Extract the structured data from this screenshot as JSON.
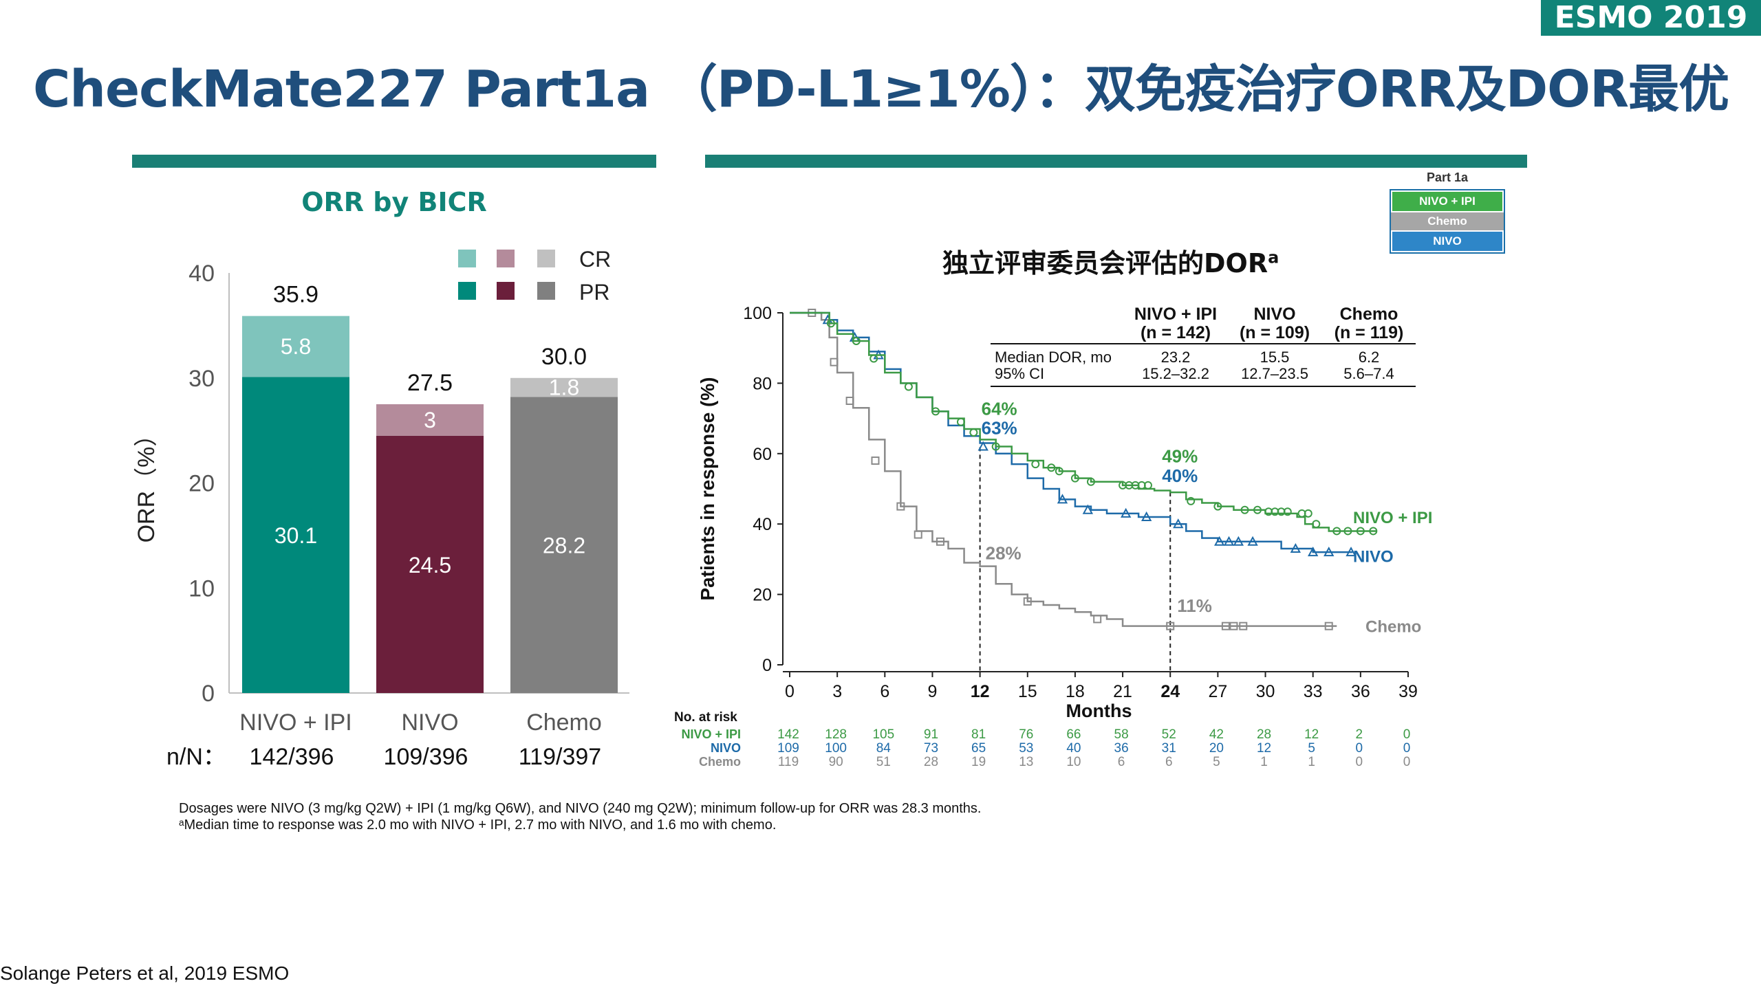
{
  "badge": "ESMO 2019",
  "title": "CheckMate227 Part1a （PD-L1≥1%）：双免疫治疗ORR及DOR最优",
  "colors": {
    "nivo_ipi": "#00897b",
    "nivo_ipi_cr": "#7fc4bc",
    "nivo": "#6b1f3b",
    "nivo_cr": "#b48b9b",
    "chemo": "#808080",
    "chemo_cr": "#c0c0c0",
    "km_nivo_ipi": "#3c9a45",
    "km_nivo": "#1d6aa8",
    "km_chemo": "#8a8a8a",
    "title": "#1f4e7c",
    "teal": "#118478"
  },
  "chart_data": [
    {
      "type": "bar",
      "title": "ORR by BICR",
      "ylabel": "ORR（%）",
      "ylim": [
        0,
        40
      ],
      "yticks": [
        "0",
        "10",
        "20",
        "30",
        "40"
      ],
      "categories": [
        "NIVO + IPI",
        "NIVO",
        "Chemo"
      ],
      "stacked": true,
      "series": [
        {
          "name": "PR",
          "values": [
            30.1,
            24.5,
            28.2
          ],
          "labels": [
            "30.1",
            "24.5",
            "28.2"
          ]
        },
        {
          "name": "CR",
          "values": [
            5.8,
            3,
            1.8
          ],
          "labels": [
            "5.8",
            "3",
            "1.8"
          ]
        }
      ],
      "totals": [
        "35.9",
        "27.5",
        "30.0"
      ],
      "nn_label": "n/N：",
      "nn": [
        "142/396",
        "109/396",
        "119/397"
      ],
      "legend": {
        "cr": "CR",
        "pr": "PR",
        "placement": "top-right"
      }
    },
    {
      "type": "line",
      "title": "独立评审委员会评估的DOR",
      "title_sup": "a",
      "xlabel": "Months",
      "ylabel": "Patients in response (%)",
      "xlim": [
        0,
        39
      ],
      "ylim": [
        0,
        100
      ],
      "xticks": [
        0,
        3,
        6,
        9,
        12,
        15,
        18,
        21,
        24,
        27,
        30,
        33,
        36,
        39
      ],
      "yticks": [
        0,
        20,
        40,
        60,
        80,
        100
      ],
      "reference_x": [
        12,
        24
      ],
      "legend_box": {
        "title": "Part 1a",
        "items": [
          "NIVO + IPI",
          "Chemo",
          "NIVO"
        ]
      },
      "table": {
        "headers": [
          [
            "NIVO + IPI",
            "(n = 142)"
          ],
          [
            "NIVO",
            "(n = 109)"
          ],
          [
            "Chemo",
            "(n = 119)"
          ]
        ],
        "rows": [
          {
            "label": "Median DOR, mo",
            "values": [
              "23.2",
              "15.5",
              "6.2"
            ]
          },
          {
            "label": "95% CI",
            "values": [
              "15.2–32.2",
              "12.7–23.5",
              "5.6–7.4"
            ]
          }
        ]
      },
      "annotations": [
        {
          "text": "64%",
          "series": "NIVO + IPI",
          "x": 12,
          "y": 64
        },
        {
          "text": "63%",
          "series": "NIVO",
          "x": 12,
          "y": 63
        },
        {
          "text": "49%",
          "series": "NIVO + IPI",
          "x": 24,
          "y": 49
        },
        {
          "text": "40%",
          "series": "NIVO",
          "x": 24,
          "y": 40
        },
        {
          "text": "28%",
          "series": "Chemo",
          "x": 12,
          "y": 28
        },
        {
          "text": "11%",
          "series": "Chemo",
          "x": 24,
          "y": 11
        }
      ],
      "series": [
        {
          "name": "NIVO + IPI",
          "marker": "circle",
          "points": [
            [
              0,
              100
            ],
            [
              2,
              100
            ],
            [
              2.5,
              97
            ],
            [
              3,
              94
            ],
            [
              4,
              92
            ],
            [
              5,
              88
            ],
            [
              6,
              83
            ],
            [
              7,
              80
            ],
            [
              8,
              76
            ],
            [
              9,
              72
            ],
            [
              10,
              70
            ],
            [
              11,
              67
            ],
            [
              12,
              64
            ],
            [
              13,
              62
            ],
            [
              14,
              60
            ],
            [
              15,
              58
            ],
            [
              16,
              56
            ],
            [
              17,
              55
            ],
            [
              18,
              53
            ],
            [
              19,
              52
            ],
            [
              20,
              52
            ],
            [
              21,
              51
            ],
            [
              22,
              50
            ],
            [
              23,
              49.5
            ],
            [
              24,
              49
            ],
            [
              25,
              47
            ],
            [
              26,
              46
            ],
            [
              27,
              45
            ],
            [
              28,
              44
            ],
            [
              30,
              43
            ],
            [
              32,
              42
            ],
            [
              32.5,
              40
            ],
            [
              33,
              39
            ],
            [
              34,
              38
            ],
            [
              37,
              38
            ]
          ],
          "censor": [
            [
              2.6,
              97
            ],
            [
              4.2,
              92
            ],
            [
              5.3,
              87
            ],
            [
              7.5,
              79
            ],
            [
              9.2,
              72
            ],
            [
              10.8,
              69
            ],
            [
              11.6,
              66
            ],
            [
              13,
              62
            ],
            [
              15.5,
              57
            ],
            [
              16.5,
              56
            ],
            [
              17,
              55
            ],
            [
              18,
              53
            ],
            [
              19,
              52
            ],
            [
              21,
              51
            ],
            [
              21.4,
              51
            ],
            [
              21.8,
              51
            ],
            [
              22.2,
              51
            ],
            [
              22.6,
              51
            ],
            [
              25.3,
              46.5
            ],
            [
              27,
              45
            ],
            [
              28.7,
              44
            ],
            [
              29.5,
              44
            ],
            [
              30.2,
              43.5
            ],
            [
              30.6,
              43.5
            ],
            [
              31,
              43.5
            ],
            [
              31.4,
              43.5
            ],
            [
              32.3,
              43
            ],
            [
              32.7,
              43
            ],
            [
              33.2,
              40
            ],
            [
              34.5,
              38
            ],
            [
              35.2,
              38
            ],
            [
              36,
              38
            ],
            [
              36.8,
              38
            ]
          ],
          "end_label": "NIVO + IPI"
        },
        {
          "name": "NIVO",
          "marker": "triangle",
          "points": [
            [
              0,
              100
            ],
            [
              2,
              100
            ],
            [
              2.5,
              98
            ],
            [
              3,
              95
            ],
            [
              4,
              93
            ],
            [
              5,
              89
            ],
            [
              6,
              84
            ],
            [
              7,
              80
            ],
            [
              8,
              76
            ],
            [
              9,
              72
            ],
            [
              10,
              68
            ],
            [
              11,
              65
            ],
            [
              12,
              63
            ],
            [
              13,
              60
            ],
            [
              14,
              57
            ],
            [
              15,
              53
            ],
            [
              16,
              50
            ],
            [
              17,
              47
            ],
            [
              18,
              45
            ],
            [
              19,
              44
            ],
            [
              20,
              43
            ],
            [
              22,
              42
            ],
            [
              24,
              40
            ],
            [
              25,
              38
            ],
            [
              26,
              36
            ],
            [
              27,
              35
            ],
            [
              30,
              35
            ],
            [
              31,
              33
            ],
            [
              33,
              32
            ],
            [
              35.5,
              32
            ]
          ],
          "censor": [
            [
              2.4,
              98
            ],
            [
              4.1,
              93
            ],
            [
              5.6,
              88
            ],
            [
              12.2,
              62
            ],
            [
              17.2,
              47
            ],
            [
              18.8,
              44
            ],
            [
              21.2,
              43
            ],
            [
              22.5,
              42
            ],
            [
              24.5,
              40
            ],
            [
              27.1,
              35
            ],
            [
              27.7,
              35
            ],
            [
              28.3,
              35
            ],
            [
              29.2,
              35
            ],
            [
              31.9,
              33
            ],
            [
              33,
              32
            ],
            [
              34,
              32
            ],
            [
              35.4,
              32
            ]
          ],
          "end_label": "NIVO"
        },
        {
          "name": "Chemo",
          "marker": "square",
          "points": [
            [
              0,
              100
            ],
            [
              1.5,
              100
            ],
            [
              2,
              98
            ],
            [
              2.5,
              93
            ],
            [
              3,
              83
            ],
            [
              4,
              73
            ],
            [
              5,
              64
            ],
            [
              6,
              55
            ],
            [
              7,
              45
            ],
            [
              8,
              38
            ],
            [
              9,
              35
            ],
            [
              10,
              33
            ],
            [
              11,
              29
            ],
            [
              12,
              28
            ],
            [
              13,
              23
            ],
            [
              14,
              20
            ],
            [
              15,
              18
            ],
            [
              16,
              17
            ],
            [
              17,
              16
            ],
            [
              18,
              15
            ],
            [
              19,
              14
            ],
            [
              20,
              13
            ],
            [
              21,
              11
            ],
            [
              24,
              11
            ],
            [
              30,
              11
            ],
            [
              34.5,
              11
            ]
          ],
          "censor": [
            [
              1.4,
              100
            ],
            [
              2.8,
              86
            ],
            [
              3.8,
              75
            ],
            [
              5.4,
              58
            ],
            [
              7,
              45
            ],
            [
              8.1,
              37
            ],
            [
              9.5,
              35
            ],
            [
              15,
              18
            ],
            [
              19.4,
              13
            ],
            [
              24,
              11
            ],
            [
              27.5,
              11
            ],
            [
              28,
              11
            ],
            [
              28.6,
              11
            ],
            [
              34,
              11
            ]
          ],
          "end_label": "Chemo"
        }
      ],
      "risk_table": {
        "title": "No. at risk",
        "months": [
          0,
          3,
          6,
          9,
          12,
          15,
          18,
          21,
          24,
          27,
          30,
          33,
          36,
          39
        ],
        "rows": [
          {
            "label": "NIVO + IPI",
            "values": [
              "142",
              "128",
              "105",
              "91",
              "81",
              "76",
              "66",
              "58",
              "52",
              "42",
              "28",
              "12",
              "2",
              "0"
            ]
          },
          {
            "label": "NIVO",
            "values": [
              "109",
              "100",
              "84",
              "73",
              "65",
              "53",
              "40",
              "36",
              "31",
              "20",
              "12",
              "5",
              "0",
              "0"
            ]
          },
          {
            "label": "Chemo",
            "values": [
              "119",
              "90",
              "51",
              "28",
              "19",
              "13",
              "10",
              "6",
              "6",
              "5",
              "1",
              "1",
              "0",
              "0"
            ]
          }
        ]
      }
    }
  ],
  "footnotes": [
    "Dosages were NIVO (3 mg/kg Q2W) + IPI (1 mg/kg Q6W), and NIVO (240 mg Q2W); minimum follow-up for ORR was 28.3 months.",
    "ᵃMedian time to response was 2.0 mo with NIVO + IPI, 2.7 mo with NIVO, and 1.6 mo with chemo."
  ],
  "source": "Solange Peters et al, 2019 ESMO"
}
